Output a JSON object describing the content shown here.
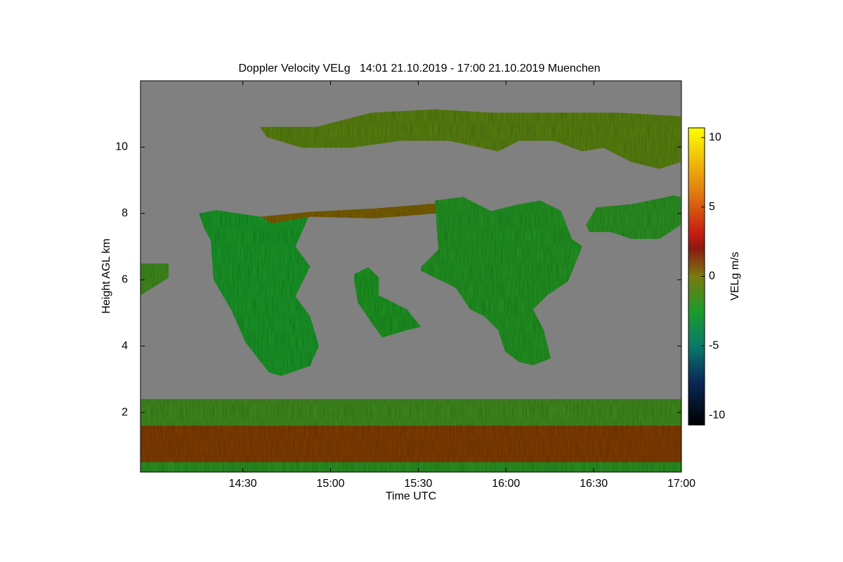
{
  "chart_data": {
    "type": "heatmap",
    "title": "Doppler Velocity VELg   14:01 21.10.2019 - 17:00 21.10.2019 Muenchen",
    "xlabel": "Time UTC",
    "ylabel": "Height AGL km",
    "colorbar_label": "VELg m/s",
    "xlim": [
      835,
      1020
    ],
    "xticks": [
      {
        "value": 870,
        "label": "14:30"
      },
      {
        "value": 900,
        "label": "15:00"
      },
      {
        "value": 930,
        "label": "15:30"
      },
      {
        "value": 960,
        "label": "16:00"
      },
      {
        "value": 990,
        "label": "16:30"
      },
      {
        "value": 1020,
        "label": "17:00"
      }
    ],
    "ylim": [
      0.2,
      12
    ],
    "yticks": [
      2,
      4,
      6,
      8,
      10
    ],
    "clim": [
      -10.7,
      10.7
    ],
    "cticks": [
      -10,
      -5,
      0,
      5,
      10
    ],
    "missing_color": "#808080",
    "colormap": [
      {
        "at": -10.7,
        "color": "#000000"
      },
      {
        "at": -7.5,
        "color": "#0a2a5a"
      },
      {
        "at": -5,
        "color": "#0a7a6a"
      },
      {
        "at": -2.5,
        "color": "#1c9a2a"
      },
      {
        "at": 0,
        "color": "#7a7a10"
      },
      {
        "at": 2,
        "color": "#8a1a10"
      },
      {
        "at": 3,
        "color": "#c41a10"
      },
      {
        "at": 6,
        "color": "#e07a10"
      },
      {
        "at": 10.7,
        "color": "#ffff00"
      }
    ],
    "regions": [
      {
        "x": [
          835,
          1020,
          1020,
          835
        ],
        "y": [
          0.2,
          0.2,
          1.6,
          1.6
        ],
        "value": 1.2
      },
      {
        "x": [
          835,
          1020,
          1020,
          835
        ],
        "y": [
          0.2,
          0.2,
          0.5,
          0.5
        ],
        "value": -2
      },
      {
        "x": [
          835,
          1020,
          1020,
          835
        ],
        "y": [
          1.6,
          1.6,
          2.4,
          2.4
        ],
        "value": -1.5
      },
      {
        "x": [
          835,
          844.6,
          844.6,
          835
        ],
        "y": [
          6.49,
          6.49,
          6.06,
          5.53
        ],
        "value": -1.5
      },
      {
        "x": [
          855,
          861,
          876,
          893,
          888,
          893,
          888,
          893,
          896,
          893,
          883,
          879,
          871,
          866,
          860,
          859,
          857
        ],
        "y": [
          8.0,
          8.1,
          7.9,
          8.0,
          7.0,
          6.4,
          5.5,
          4.9,
          4.0,
          3.4,
          3.1,
          3.2,
          4.1,
          5.1,
          6.0,
          7.2,
          7.5
        ],
        "value": -2.5
      },
      {
        "x": [
          876,
          893,
          915,
          936,
          936,
          915,
          893,
          880
        ],
        "y": [
          7.9,
          8.05,
          8.15,
          8.3,
          8.0,
          7.85,
          7.9,
          7.7
        ],
        "value": 0.5
      },
      {
        "x": [
          908.1,
          912.9,
          916.5,
          916.5,
          926.1,
          930.9,
          926.1,
          917.7,
          914.1,
          909.3,
          908.1
        ],
        "y": [
          6.17,
          6.38,
          6.06,
          5.53,
          5.11,
          4.58,
          4.48,
          4.26,
          4.69,
          5.32,
          5.96
        ],
        "value": -2.3
      },
      {
        "x": [
          930.9,
          936.9,
          935.7,
          945.3,
          954.9,
          964.5,
          971.7,
          978.9,
          982.5,
          986.1,
          981.3,
          974.1,
          969.3,
          972.9,
          975.3,
          969.3,
          964.5,
          959.7,
          957.3,
          952.5,
          947.7,
          942.9,
          938.1,
          930.9
        ],
        "y": [
          6.38,
          6.91,
          8.39,
          8.5,
          8.07,
          8.28,
          8.39,
          8.07,
          7.23,
          7.01,
          5.96,
          5.53,
          5.11,
          4.48,
          3.63,
          3.42,
          3.52,
          3.84,
          4.48,
          4.9,
          5.11,
          5.75,
          5.96,
          6.27
        ],
        "value": -2.2
      },
      {
        "x": [
          875.8,
          895,
          914.1,
          935.7,
          954.9,
          974.1,
          998.1,
          1019.7,
          1019.7,
          1012.5,
          1002.9,
          993.3,
          986.1,
          976.5,
          964.5,
          957.3,
          940.5,
          923.7,
          906.9,
          897.3,
          890.2,
          878.2
        ],
        "y": [
          10.61,
          10.61,
          11.04,
          11.14,
          11.04,
          11.04,
          11.04,
          10.93,
          9.55,
          9.34,
          9.55,
          9.98,
          9.87,
          10.19,
          10.19,
          9.87,
          10.19,
          10.19,
          9.98,
          9.98,
          9.98,
          10.3
        ],
        "value": -0.8
      },
      {
        "x": [
          987.3,
          990.9,
          1002.9,
          1017.3,
          1019.7,
          1019.7,
          1012.5,
          1002.9,
          995.7,
          988.5
        ],
        "y": [
          7.65,
          8.18,
          8.28,
          8.54,
          8.5,
          7.65,
          7.23,
          7.23,
          7.44,
          7.44
        ],
        "value": -2
      }
    ]
  }
}
